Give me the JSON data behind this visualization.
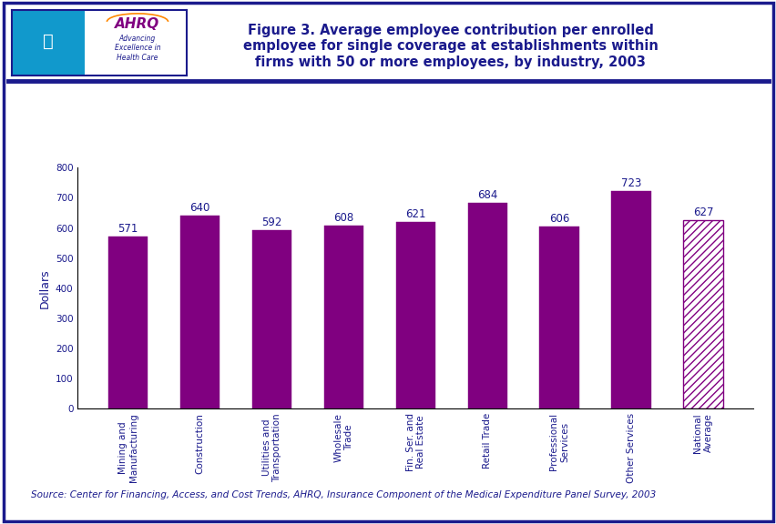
{
  "categories": [
    "Mining and\nManufacturing",
    "Construction",
    "Utilities and\nTransportation",
    "Wholesale\nTrade",
    "Fin. Ser. and\nReal Estate",
    "Retail Trade",
    "Professional\nServices",
    "Other Services",
    "National\nAverage"
  ],
  "values": [
    571,
    640,
    592,
    608,
    621,
    684,
    606,
    723,
    627
  ],
  "bar_color": "#800080",
  "hatched_bar_index": 8,
  "hatch_pattern": "////",
  "title": "Figure 3. Average employee contribution per enrolled\nemployee for single coverage at establishments within\nfirms with 50 or more employees, by industry, 2003",
  "ylabel": "Dollars",
  "ylim": [
    0,
    800
  ],
  "yticks": [
    0,
    100,
    200,
    300,
    400,
    500,
    600,
    700,
    800
  ],
  "source_text": "Source: Center for Financing, Access, and Cost Trends, AHRQ, Insurance Component of the Medical Expenditure Panel Survey, 2003",
  "title_color": "#1a1a8c",
  "label_color": "#1a1a8c",
  "background_color": "#ffffff",
  "border_color": "#1a1a8c",
  "separator_color": "#1a1a8c",
  "value_label_fontsize": 8.5,
  "axis_label_fontsize": 9,
  "tick_label_fontsize": 7.5,
  "title_fontsize": 10.5,
  "source_fontsize": 7.5
}
